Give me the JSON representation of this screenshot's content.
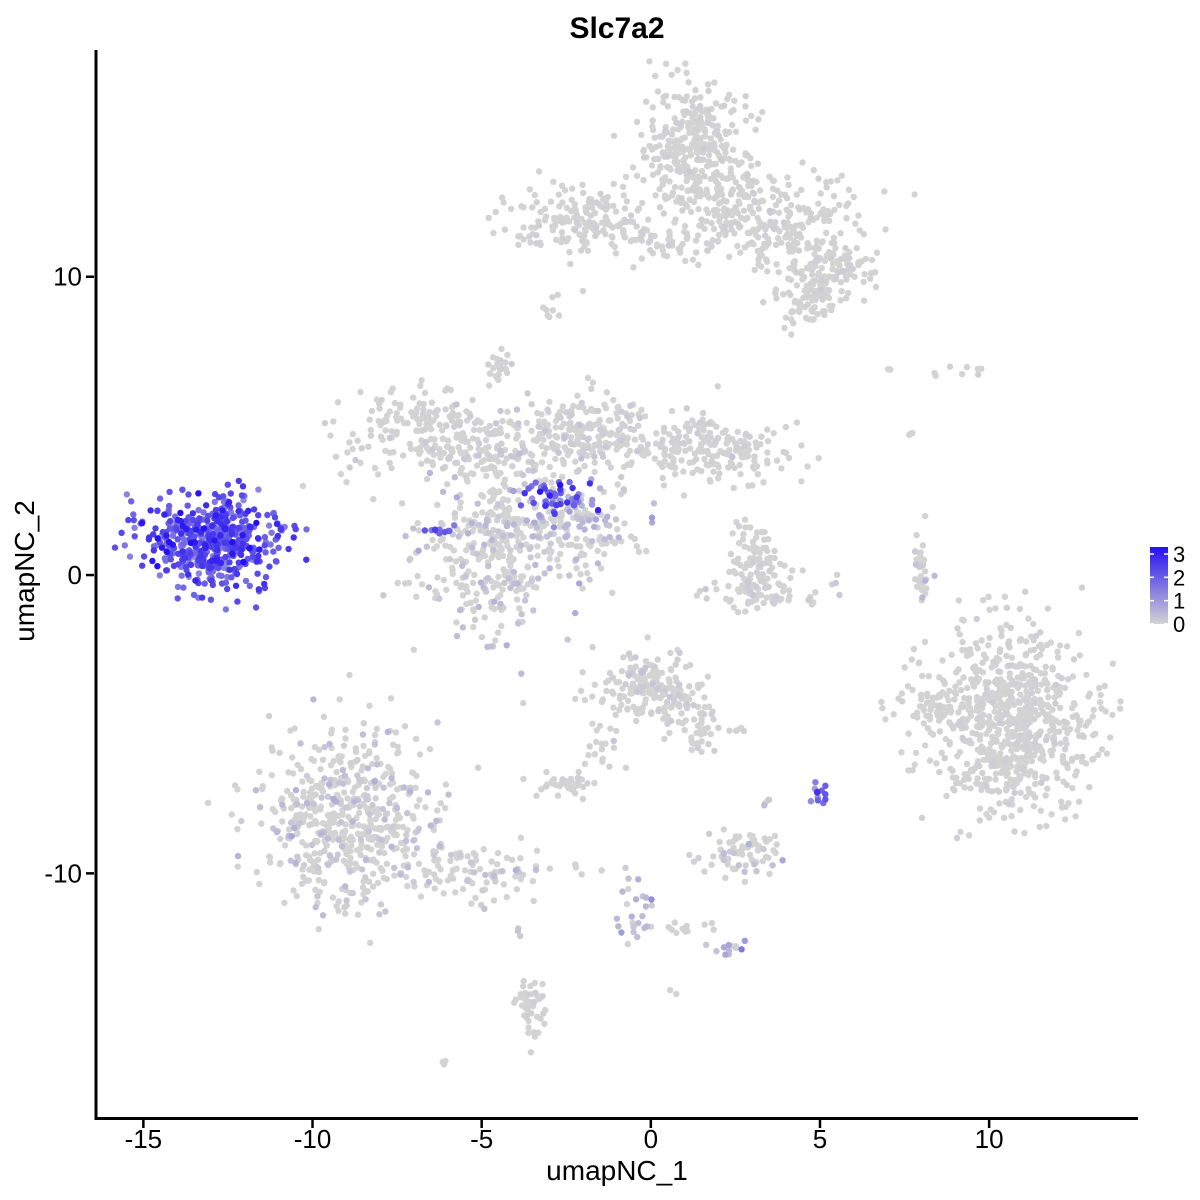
{
  "chart_data": {
    "type": "scatter",
    "title": "Slc7a2",
    "xlabel": "umapNC_1",
    "ylabel": "umapNC_2",
    "xlim": [
      -16.4,
      14.4
    ],
    "ylim": [
      -18.2,
      17.6
    ],
    "x_ticks": [
      -15,
      -10,
      -5,
      0,
      5,
      10
    ],
    "x_tick_labels": [
      "-15",
      "-10",
      "-5",
      "0",
      "5",
      "10"
    ],
    "y_ticks": [
      -10,
      0,
      10
    ],
    "y_tick_labels": [
      "-10",
      "0",
      "10"
    ],
    "grid": false,
    "legend_position": "right",
    "color_scale": {
      "low_color": "#d3d3d3",
      "high_color": "#2410f2",
      "min": 0,
      "max": 3.3,
      "breaks": [
        0,
        1,
        2,
        3
      ],
      "labels": [
        "0",
        "1",
        "2",
        "3"
      ]
    },
    "clusters": [
      {
        "cx": -12.9,
        "cy": 1.1,
        "sx": 1.0,
        "sy": 0.75,
        "n": 520,
        "expr": 2.1,
        "expr_sd": 0.55
      },
      {
        "cx": -8.9,
        "cy": -8.3,
        "sx": 1.3,
        "sy": 1.5,
        "n": 560,
        "expr": 0.15,
        "expr_sd": 0.25
      },
      {
        "cx": -5.2,
        "cy": -10.0,
        "sx": 1.3,
        "sy": 0.5,
        "n": 90,
        "expr": 0.1,
        "expr_sd": 0.2
      },
      {
        "cx": -4.5,
        "cy": 0.8,
        "sx": 1.2,
        "sy": 1.3,
        "n": 380,
        "expr": 0.15,
        "expr_sd": 0.3
      },
      {
        "cx": -2.7,
        "cy": 2.6,
        "sx": 0.55,
        "sy": 0.25,
        "n": 40,
        "expr": 2.2,
        "expr_sd": 0.6
      },
      {
        "cx": -6.2,
        "cy": 1.5,
        "sx": 0.25,
        "sy": 0.12,
        "n": 10,
        "expr": 2.0,
        "expr_sd": 0.5
      },
      {
        "cx": -4.6,
        "cy": 4.2,
        "sx": 2.2,
        "sy": 0.6,
        "n": 280,
        "expr": 0.05,
        "expr_sd": 0.1
      },
      {
        "cx": -7.0,
        "cy": 5.2,
        "sx": 0.8,
        "sy": 0.5,
        "n": 90,
        "expr": 0.0,
        "expr_sd": 0.05
      },
      {
        "cx": -4.5,
        "cy": 7.0,
        "sx": 0.2,
        "sy": 0.3,
        "n": 25,
        "expr": 0.0,
        "expr_sd": 0.05
      },
      {
        "cx": -1.5,
        "cy": 5.0,
        "sx": 0.8,
        "sy": 0.6,
        "n": 140,
        "expr": 0.05,
        "expr_sd": 0.1
      },
      {
        "cx": 1.5,
        "cy": 4.2,
        "sx": 1.3,
        "sy": 0.6,
        "n": 200,
        "expr": 0.0,
        "expr_sd": 0.05
      },
      {
        "cx": -2.0,
        "cy": 2.0,
        "sx": 0.8,
        "sy": 0.5,
        "n": 80,
        "expr": 0.3,
        "expr_sd": 0.5
      },
      {
        "cx": -1.6,
        "cy": 1.0,
        "sx": 0.9,
        "sy": 0.3,
        "n": 30,
        "expr": 0.0,
        "expr_sd": 0.05
      },
      {
        "cx": 1.3,
        "cy": 14.2,
        "sx": 0.9,
        "sy": 1.2,
        "n": 360,
        "expr": 0.0,
        "expr_sd": 0.05
      },
      {
        "cx": -2.3,
        "cy": 11.9,
        "sx": 1.0,
        "sy": 0.6,
        "n": 160,
        "expr": 0.0,
        "expr_sd": 0.05
      },
      {
        "cx": 0.4,
        "cy": 11.2,
        "sx": 1.0,
        "sy": 0.3,
        "n": 50,
        "expr": 0.0,
        "expr_sd": 0.05
      },
      {
        "cx": 3.6,
        "cy": 11.8,
        "sx": 1.3,
        "sy": 0.9,
        "n": 260,
        "expr": 0.0,
        "expr_sd": 0.05
      },
      {
        "cx": 5.3,
        "cy": 10.0,
        "sx": 0.7,
        "sy": 0.6,
        "n": 120,
        "expr": 0.0,
        "expr_sd": 0.05
      },
      {
        "cx": 4.5,
        "cy": 9.0,
        "sx": 0.4,
        "sy": 0.4,
        "n": 40,
        "expr": 0.0,
        "expr_sd": 0.05
      },
      {
        "cx": -3.0,
        "cy": 8.8,
        "sx": 0.15,
        "sy": 0.3,
        "n": 8,
        "expr": 0.0,
        "expr_sd": 0.05
      },
      {
        "cx": 3.1,
        "cy": 0.5,
        "sx": 0.4,
        "sy": 0.6,
        "n": 80,
        "expr": 0.0,
        "expr_sd": 0.05
      },
      {
        "cx": 3.5,
        "cy": -0.6,
        "sx": 1.0,
        "sy": 0.35,
        "n": 70,
        "expr": 0.05,
        "expr_sd": 0.15
      },
      {
        "cx": 8.0,
        "cy": 0.3,
        "sx": 0.15,
        "sy": 0.7,
        "n": 30,
        "expr": 0.15,
        "expr_sd": 0.4
      },
      {
        "cx": 10.6,
        "cy": -4.8,
        "sx": 1.25,
        "sy": 1.6,
        "n": 760,
        "expr": 0.0,
        "expr_sd": 0.05
      },
      {
        "cx": 8.2,
        "cy": -4.5,
        "sx": 0.35,
        "sy": 0.35,
        "n": 30,
        "expr": 0.0,
        "expr_sd": 0.05
      },
      {
        "cx": -0.2,
        "cy": -3.8,
        "sx": 0.7,
        "sy": 0.55,
        "n": 170,
        "expr": 0.03,
        "expr_sd": 0.1
      },
      {
        "cx": 1.1,
        "cy": -4.5,
        "sx": 0.5,
        "sy": 0.5,
        "n": 50,
        "expr": 0.0,
        "expr_sd": 0.05
      },
      {
        "cx": 1.4,
        "cy": -5.6,
        "sx": 0.2,
        "sy": 0.3,
        "n": 15,
        "expr": 0.0,
        "expr_sd": 0.05
      },
      {
        "cx": -1.6,
        "cy": -5.6,
        "sx": 0.3,
        "sy": 0.6,
        "n": 20,
        "expr": 0.0,
        "expr_sd": 0.05
      },
      {
        "cx": -2.5,
        "cy": -7.0,
        "sx": 0.45,
        "sy": 0.2,
        "n": 40,
        "expr": 0.0,
        "expr_sd": 0.05
      },
      {
        "cx": 2.6,
        "cy": -9.3,
        "sx": 0.55,
        "sy": 0.4,
        "n": 70,
        "expr": 0.1,
        "expr_sd": 0.3
      },
      {
        "cx": 3.4,
        "cy": -7.6,
        "sx": 0.1,
        "sy": 0.1,
        "n": 5,
        "expr": 0.1,
        "expr_sd": 0.2
      },
      {
        "cx": 5.0,
        "cy": -7.4,
        "sx": 0.15,
        "sy": 0.2,
        "n": 12,
        "expr": 2.0,
        "expr_sd": 0.6
      },
      {
        "cx": 2.7,
        "cy": -5.2,
        "sx": 0.1,
        "sy": 0.05,
        "n": 5,
        "expr": 0.0,
        "expr_sd": 0.05
      },
      {
        "cx": -0.4,
        "cy": -11.1,
        "sx": 0.25,
        "sy": 0.8,
        "n": 25,
        "expr": 0.3,
        "expr_sd": 0.4
      },
      {
        "cx": 1.0,
        "cy": -11.8,
        "sx": 0.5,
        "sy": 0.15,
        "n": 12,
        "expr": 0.0,
        "expr_sd": 0.05
      },
      {
        "cx": 2.3,
        "cy": -12.5,
        "sx": 0.25,
        "sy": 0.15,
        "n": 12,
        "expr": 0.4,
        "expr_sd": 0.5
      },
      {
        "cx": -3.5,
        "cy": -14.5,
        "sx": 0.25,
        "sy": 0.6,
        "n": 45,
        "expr": 0.0,
        "expr_sd": 0.05
      },
      {
        "cx": -3.9,
        "cy": -11.9,
        "sx": 0.05,
        "sy": 0.1,
        "n": 3,
        "expr": 0.2,
        "expr_sd": 0.2
      },
      {
        "cx": 0.6,
        "cy": -14.0,
        "sx": 0.05,
        "sy": 0.05,
        "n": 2,
        "expr": 0.0,
        "expr_sd": 0.05
      },
      {
        "cx": -6.1,
        "cy": -16.3,
        "sx": 0.05,
        "sy": 0.05,
        "n": 3,
        "expr": 0.0,
        "expr_sd": 0.05
      },
      {
        "cx": 9.5,
        "cy": 6.8,
        "sx": 0.4,
        "sy": 0.15,
        "n": 6,
        "expr": 0.0,
        "expr_sd": 0.05
      },
      {
        "cx": 7.7,
        "cy": 4.8,
        "sx": 0.05,
        "sy": 0.15,
        "n": 3,
        "expr": 0.0,
        "expr_sd": 0.05
      },
      {
        "cx": 7.0,
        "cy": 6.9,
        "sx": 0.05,
        "sy": 0.05,
        "n": 2,
        "expr": 0.0,
        "expr_sd": 0.05
      },
      {
        "cx": 8.4,
        "cy": 6.7,
        "sx": 0.05,
        "sy": 0.05,
        "n": 2,
        "expr": 0.0,
        "expr_sd": 0.05
      }
    ]
  }
}
